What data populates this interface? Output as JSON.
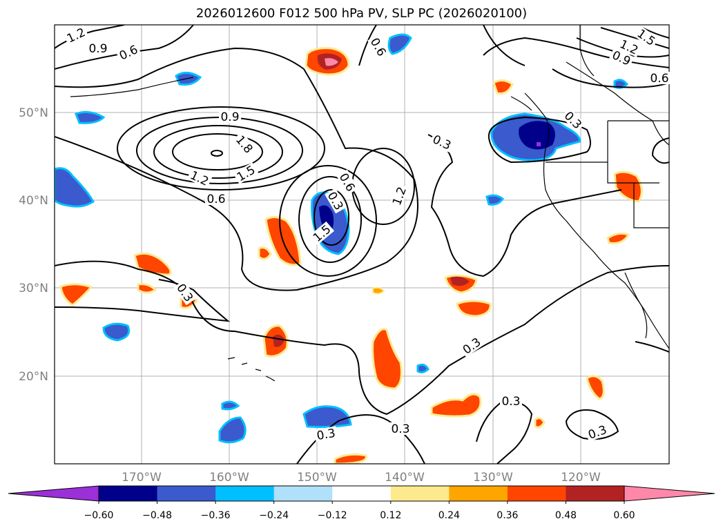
{
  "title": "2026012600 F012 500 hPa PV, SLP PC (2026020100)",
  "lat_labels": [
    "50°N",
    "40°N",
    "30°N",
    "20°N"
  ],
  "lon_labels": [
    "170°W",
    "160°W",
    "150°W",
    "140°W",
    "130°W",
    "120°W"
  ],
  "colorbar": {
    "ticks": [
      "−0.60",
      "−0.48",
      "−0.36",
      "−0.24",
      "−0.12",
      "0.12",
      "0.24",
      "0.36",
      "0.48",
      "0.60"
    ],
    "colors": [
      "#9b30d8",
      "#00008b",
      "#3a5acd",
      "#00bfff",
      "#b0e0fa",
      "#ffffff",
      "#fdea8f",
      "#ffa500",
      "#ff4500",
      "#b22222",
      "#ff88aa"
    ]
  },
  "contour_labels": [
    "1.2",
    "0.9",
    "0.6",
    "0.6",
    "0.9",
    "1.8",
    "1.5",
    "1.2",
    "0.6",
    "0.3",
    "0.6",
    "0.3",
    "1.2",
    "1.5",
    "0.3",
    "0.3",
    "0.3",
    "0.3",
    "0.3",
    "0.3",
    "1.5",
    "1.2",
    "0.9",
    "0.6",
    "0.3"
  ]
}
